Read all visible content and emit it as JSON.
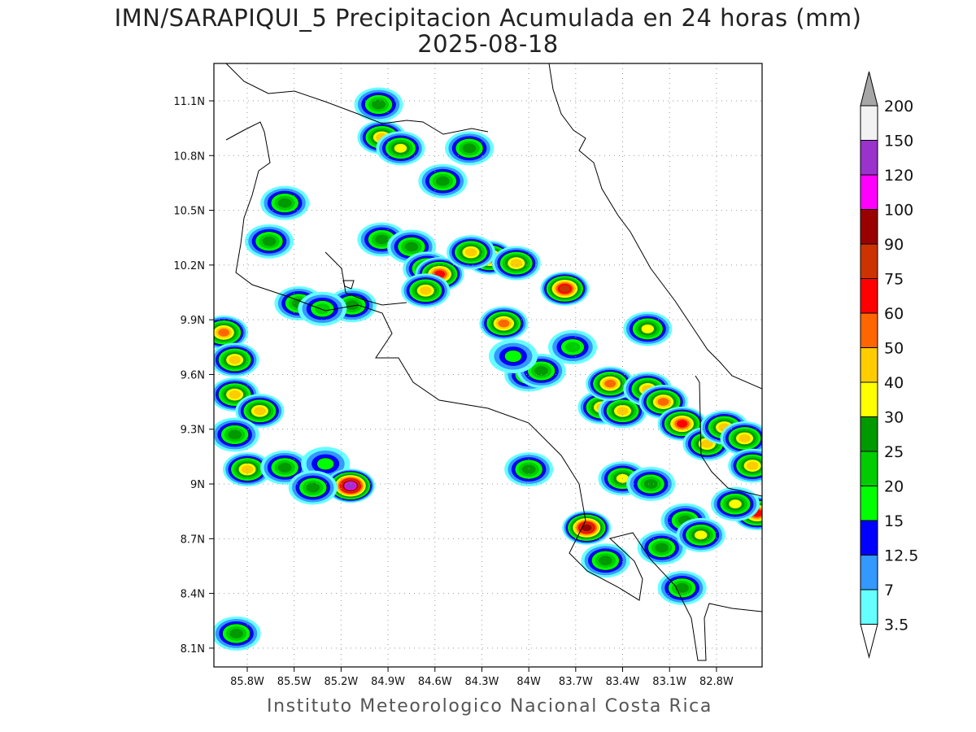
{
  "title": "IMN/SARAPIQUI_5 Precipitacion Acumulada en 24 horas (mm)",
  "date": "2025-08-18",
  "footer": "Instituto Meteorologico Nacional Costa Rica",
  "map": {
    "lon_range_west": [
      86.0,
      82.5
    ],
    "lat_range_north": [
      8.0,
      11.3
    ],
    "lon_ticks": [
      "85.8W",
      "85.5W",
      "85.2W",
      "84.9W",
      "84.6W",
      "84.3W",
      "84W",
      "83.7W",
      "83.4W",
      "83.1W",
      "82.8W"
    ],
    "lat_ticks": [
      "11.1N",
      "10.8N",
      "10.5N",
      "10.2N",
      "9.9N",
      "9.6N",
      "9.3N",
      "9N",
      "8.7N",
      "8.4N",
      "8.1N"
    ],
    "grid": true
  },
  "colorbar": {
    "labels": [
      "3.5",
      "7",
      "12.5",
      "15",
      "20",
      "25",
      "30",
      "40",
      "50",
      "60",
      "75",
      "90",
      "100",
      "120",
      "150",
      "200"
    ],
    "colors": [
      "#66ffff",
      "#3399ff",
      "#0000ff",
      "#00ff00",
      "#00cc00",
      "#009900",
      "#ffff00",
      "#ffcc00",
      "#ff6600",
      "#ff0000",
      "#cc3300",
      "#990000",
      "#ff00ff",
      "#9933cc",
      "#f2f2f2"
    ],
    "over_color": "#a6a6a6",
    "under_color": "#ffffff"
  },
  "precip_cells": [
    {
      "lon": 84.96,
      "lat": 11.08,
      "peak": 25
    },
    {
      "lon": 84.94,
      "lat": 10.9,
      "peak": 40
    },
    {
      "lon": 84.82,
      "lat": 10.84,
      "peak": 30
    },
    {
      "lon": 84.38,
      "lat": 10.84,
      "peak": 25
    },
    {
      "lon": 84.55,
      "lat": 10.66,
      "peak": 25
    },
    {
      "lon": 85.56,
      "lat": 10.54,
      "peak": 25
    },
    {
      "lon": 85.66,
      "lat": 10.33,
      "peak": 25
    },
    {
      "lon": 84.94,
      "lat": 10.34,
      "peak": 25
    },
    {
      "lon": 84.75,
      "lat": 10.3,
      "peak": 25
    },
    {
      "lon": 84.65,
      "lat": 10.18,
      "peak": 30
    },
    {
      "lon": 84.57,
      "lat": 10.15,
      "peak": 60
    },
    {
      "lon": 84.66,
      "lat": 10.06,
      "peak": 40
    },
    {
      "lon": 84.25,
      "lat": 10.24,
      "peak": 60
    },
    {
      "lon": 84.37,
      "lat": 10.27,
      "peak": 40
    },
    {
      "lon": 84.08,
      "lat": 10.21,
      "peak": 40
    },
    {
      "lon": 83.77,
      "lat": 10.07,
      "peak": 75
    },
    {
      "lon": 84.16,
      "lat": 9.88,
      "peak": 50
    },
    {
      "lon": 85.47,
      "lat": 9.99,
      "peak": 25
    },
    {
      "lon": 85.13,
      "lat": 9.98,
      "peak": 25
    },
    {
      "lon": 85.32,
      "lat": 9.96,
      "peak": 20
    },
    {
      "lon": 85.95,
      "lat": 9.83,
      "peak": 50
    },
    {
      "lon": 85.88,
      "lat": 9.68,
      "peak": 40
    },
    {
      "lon": 85.88,
      "lat": 9.49,
      "peak": 40
    },
    {
      "lon": 85.72,
      "lat": 9.4,
      "peak": 40
    },
    {
      "lon": 85.88,
      "lat": 9.27,
      "peak": 25
    },
    {
      "lon": 85.8,
      "lat": 9.08,
      "peak": 40
    },
    {
      "lon": 85.56,
      "lat": 9.09,
      "peak": 25
    },
    {
      "lon": 85.3,
      "lat": 9.11,
      "peak": 15
    },
    {
      "lon": 85.14,
      "lat": 8.99,
      "peak": 120
    },
    {
      "lon": 85.38,
      "lat": 8.98,
      "peak": 25
    },
    {
      "lon": 84.0,
      "lat": 9.6,
      "peak": 25
    },
    {
      "lon": 83.92,
      "lat": 9.62,
      "peak": 25
    },
    {
      "lon": 83.53,
      "lat": 9.42,
      "peak": 40
    },
    {
      "lon": 83.4,
      "lat": 9.4,
      "peak": 40
    },
    {
      "lon": 83.48,
      "lat": 9.55,
      "peak": 50
    },
    {
      "lon": 83.24,
      "lat": 9.52,
      "peak": 40
    },
    {
      "lon": 83.14,
      "lat": 9.45,
      "peak": 50
    },
    {
      "lon": 83.24,
      "lat": 9.85,
      "peak": 30
    },
    {
      "lon": 83.02,
      "lat": 9.33,
      "peak": 60
    },
    {
      "lon": 82.86,
      "lat": 9.22,
      "peak": 40
    },
    {
      "lon": 82.75,
      "lat": 9.31,
      "peak": 40
    },
    {
      "lon": 82.62,
      "lat": 9.25,
      "peak": 40
    },
    {
      "lon": 82.57,
      "lat": 9.1,
      "peak": 40
    },
    {
      "lon": 82.54,
      "lat": 8.84,
      "peak": 60
    },
    {
      "lon": 82.68,
      "lat": 8.89,
      "peak": 30
    },
    {
      "lon": 83.63,
      "lat": 8.76,
      "peak": 90
    },
    {
      "lon": 83.51,
      "lat": 8.58,
      "peak": 25
    },
    {
      "lon": 83.4,
      "lat": 9.03,
      "peak": 30
    },
    {
      "lon": 83.22,
      "lat": 9.0,
      "peak": 25
    },
    {
      "lon": 83.15,
      "lat": 8.65,
      "peak": 25
    },
    {
      "lon": 83.0,
      "lat": 8.8,
      "peak": 25
    },
    {
      "lon": 82.9,
      "lat": 8.72,
      "peak": 30
    },
    {
      "lon": 83.02,
      "lat": 8.43,
      "peak": 25
    },
    {
      "lon": 85.87,
      "lat": 8.18,
      "peak": 25
    },
    {
      "lon": 84.0,
      "lat": 9.08,
      "peak": 25
    },
    {
      "lon": 83.72,
      "lat": 9.75,
      "peak": 20
    },
    {
      "lon": 84.1,
      "lat": 9.7,
      "peak": 15
    }
  ]
}
